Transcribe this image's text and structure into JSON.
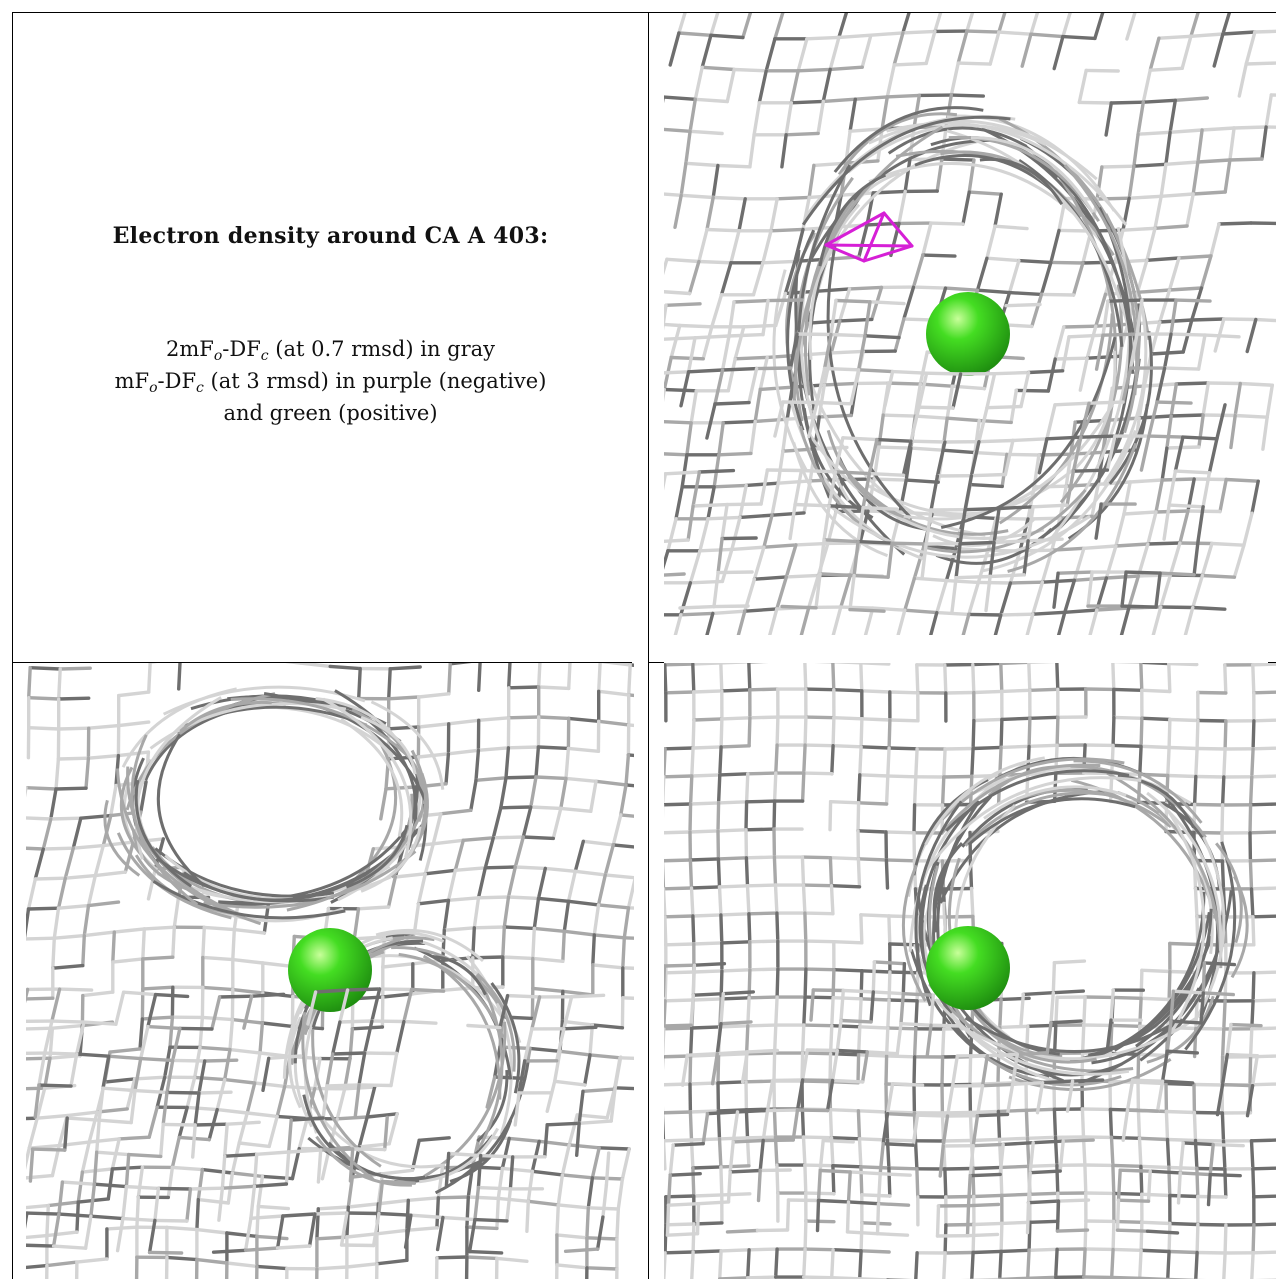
{
  "caption": {
    "title": "Electron density around CA A 403:",
    "line1": {
      "pre": "2mF",
      "sub1": "o",
      "mid": "-DF",
      "sub2": "c",
      "post": " (at 0.7 rmsd) in gray"
    },
    "line2": {
      "pre": "mF",
      "sub1": "o",
      "mid": "-DF",
      "sub2": "c",
      "post": " (at 3 rmsd) in purple (negative)"
    },
    "line3": "and green (positive)"
  },
  "colors": {
    "mesh_light": "#d4d4d4",
    "mesh_mid": "#a8a8a8",
    "mesh_dark": "#6e6e6e",
    "negative_density": "#d61fd6",
    "positive_density": "#44dd22"
  },
  "views": [
    {
      "name": "view-top-right",
      "has_negative_density": true
    },
    {
      "name": "view-bottom-left",
      "has_negative_density": false
    },
    {
      "name": "view-bottom-right",
      "has_negative_density": false
    }
  ]
}
